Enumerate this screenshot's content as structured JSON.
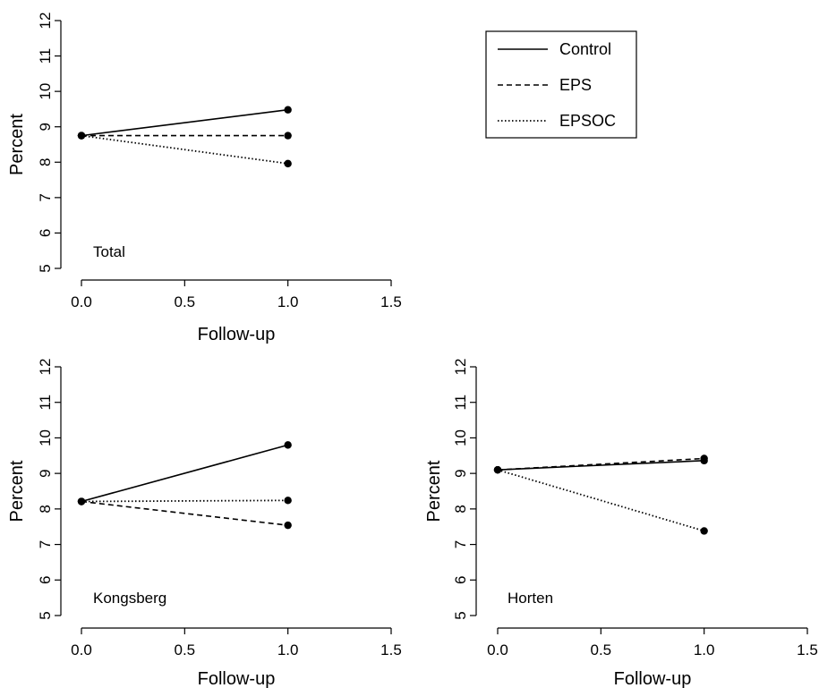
{
  "chart_data": [
    {
      "type": "line",
      "panel_label": "Total",
      "xlabel": "Follow-up",
      "ylabel": "Percent",
      "xlim": [
        0,
        1.5
      ],
      "ylim": [
        5,
        12
      ],
      "x_ticks": [
        "0.0",
        "0.5",
        "1.0",
        "1.5"
      ],
      "y_ticks": [
        "5",
        "6",
        "7",
        "8",
        "9",
        "10",
        "11",
        "12"
      ],
      "grid": false,
      "legend_position": "top-right",
      "series": [
        {
          "name": "Control",
          "style": "solid",
          "x": [
            0,
            1
          ],
          "y": [
            8.75,
            9.48
          ]
        },
        {
          "name": "EPS",
          "style": "dashed",
          "x": [
            0,
            1
          ],
          "y": [
            8.75,
            8.75
          ]
        },
        {
          "name": "EPSOC",
          "style": "dotted",
          "x": [
            0,
            1
          ],
          "y": [
            8.75,
            7.96
          ]
        }
      ]
    },
    {
      "type": "line",
      "panel_label": "Kongsberg",
      "xlabel": "Follow-up",
      "ylabel": "Percent",
      "xlim": [
        0,
        1.5
      ],
      "ylim": [
        5,
        12
      ],
      "x_ticks": [
        "0.0",
        "0.5",
        "1.0",
        "1.5"
      ],
      "y_ticks": [
        "5",
        "6",
        "7",
        "8",
        "9",
        "10",
        "11",
        "12"
      ],
      "grid": false,
      "series": [
        {
          "name": "Control",
          "style": "solid",
          "x": [
            0,
            1
          ],
          "y": [
            8.21,
            9.8
          ]
        },
        {
          "name": "EPS",
          "style": "dashed",
          "x": [
            0,
            1
          ],
          "y": [
            8.21,
            7.54
          ]
        },
        {
          "name": "EPSOC",
          "style": "dotted",
          "x": [
            0,
            1
          ],
          "y": [
            8.21,
            8.24
          ]
        }
      ]
    },
    {
      "type": "line",
      "panel_label": "Horten",
      "xlabel": "Follow-up",
      "ylabel": "Percent",
      "xlim": [
        0,
        1.5
      ],
      "ylim": [
        5,
        12
      ],
      "x_ticks": [
        "0.0",
        "0.5",
        "1.0",
        "1.5"
      ],
      "y_ticks": [
        "5",
        "6",
        "7",
        "8",
        "9",
        "10",
        "11",
        "12"
      ],
      "grid": false,
      "series": [
        {
          "name": "Control",
          "style": "solid",
          "x": [
            0,
            1
          ],
          "y": [
            9.1,
            9.36
          ]
        },
        {
          "name": "EPS",
          "style": "dashed",
          "x": [
            0,
            1
          ],
          "y": [
            9.1,
            9.42
          ]
        },
        {
          "name": "EPSOC",
          "style": "dotted",
          "x": [
            0,
            1
          ],
          "y": [
            9.1,
            7.38
          ]
        }
      ]
    }
  ],
  "legend": {
    "entries": [
      {
        "label": "Control",
        "style": "solid"
      },
      {
        "label": "EPS",
        "style": "dashed"
      },
      {
        "label": "EPSOC",
        "style": "dotted"
      }
    ]
  },
  "colors": {
    "line": "#000000",
    "point": "#000000",
    "background": "#ffffff"
  }
}
